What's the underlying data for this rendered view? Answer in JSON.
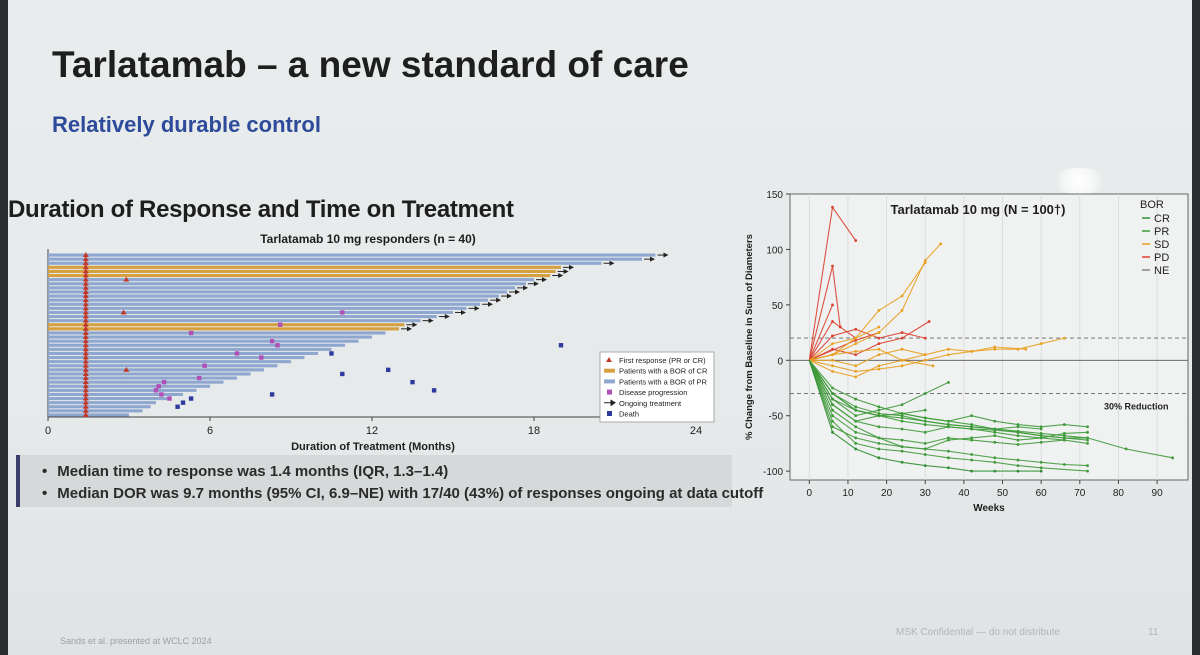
{
  "slide": {
    "title": "Tarlatamab – a new standard of care",
    "subtitle": "Relatively durable control",
    "left_heading": "Duration of Response and Time on Treatment",
    "bullets": [
      "Median time to response was 1.4 months (IQR, 1.3–1.4)",
      "Median DOR was 9.7 months (95% CI, 6.9–NE) with 17/40 (43%) of responses ongoing at data cutoff"
    ],
    "footer_left": "Sands et al. presented at WCLC 2024",
    "footer_right": "MSK Confidential — do not distribute",
    "page_number": "11",
    "colors": {
      "title": "#1e1e1e",
      "subtitle": "#2e4b9b",
      "pr_bar": "#8fa7cf",
      "cr_bar": "#d4a040",
      "first_response": "#c0392b",
      "progression": "#b04fb8",
      "death": "#2e3a9e"
    }
  },
  "chart_data": [
    {
      "type": "bar",
      "orientation": "horizontal",
      "title": "Tarlatamab 10 mg responders (n = 40)",
      "xlabel": "Duration of Treatment (Months)",
      "xlim": [
        0,
        24
      ],
      "xticks": [
        "0",
        "6",
        "12",
        "18",
        "24"
      ],
      "legend": [
        "First response (PR or CR)",
        "Patients with a BOR of CR",
        "Patients with a BOR of PR",
        "Disease progression",
        "Ongoing treatment",
        "Death"
      ],
      "legend_position": "right",
      "bars": [
        {
          "duration": 22.5,
          "bor": "PR",
          "ongoing": true
        },
        {
          "duration": 22.0,
          "bor": "PR",
          "ongoing": true
        },
        {
          "duration": 20.5,
          "bor": "PR",
          "ongoing": true
        },
        {
          "duration": 19.0,
          "bor": "CR",
          "ongoing": true
        },
        {
          "duration": 18.8,
          "bor": "CR",
          "ongoing": true
        },
        {
          "duration": 18.6,
          "bor": "CR",
          "ongoing": true
        },
        {
          "duration": 18.0,
          "bor": "PR",
          "ongoing": true
        },
        {
          "duration": 17.7,
          "bor": "PR",
          "ongoing": true
        },
        {
          "duration": 17.3,
          "bor": "PR",
          "ongoing": true
        },
        {
          "duration": 17.0,
          "bor": "PR",
          "ongoing": true
        },
        {
          "duration": 16.7,
          "bor": "PR",
          "ongoing": true
        },
        {
          "duration": 16.3,
          "bor": "PR",
          "ongoing": true
        },
        {
          "duration": 16.0,
          "bor": "PR",
          "ongoing": true
        },
        {
          "duration": 15.5,
          "bor": "PR",
          "ongoing": true
        },
        {
          "duration": 15.0,
          "bor": "PR",
          "ongoing": true
        },
        {
          "duration": 14.4,
          "bor": "PR",
          "ongoing": true
        },
        {
          "duration": 13.8,
          "bor": "PR",
          "ongoing": true
        },
        {
          "duration": 13.2,
          "bor": "CR",
          "ongoing": true
        },
        {
          "duration": 13.0,
          "bor": "CR",
          "ongoing": true
        },
        {
          "duration": 12.5,
          "bor": "PR",
          "ongoing": false
        },
        {
          "duration": 12.0,
          "bor": "PR",
          "ongoing": false
        },
        {
          "duration": 11.5,
          "bor": "PR",
          "ongoing": false
        },
        {
          "duration": 11.0,
          "bor": "PR",
          "ongoing": false
        },
        {
          "duration": 10.5,
          "bor": "PR",
          "ongoing": false
        },
        {
          "duration": 10.0,
          "bor": "PR",
          "ongoing": false
        },
        {
          "duration": 9.5,
          "bor": "PR",
          "ongoing": false
        },
        {
          "duration": 9.0,
          "bor": "PR",
          "ongoing": false
        },
        {
          "duration": 8.5,
          "bor": "PR",
          "ongoing": false
        },
        {
          "duration": 8.0,
          "bor": "PR",
          "ongoing": false
        },
        {
          "duration": 7.5,
          "bor": "PR",
          "ongoing": false
        },
        {
          "duration": 7.0,
          "bor": "PR",
          "ongoing": false
        },
        {
          "duration": 6.5,
          "bor": "PR",
          "ongoing": false
        },
        {
          "duration": 6.0,
          "bor": "PR",
          "ongoing": false
        },
        {
          "duration": 5.5,
          "bor": "PR",
          "ongoing": false
        },
        {
          "duration": 5.0,
          "bor": "PR",
          "ongoing": false
        },
        {
          "duration": 4.5,
          "bor": "PR",
          "ongoing": false
        },
        {
          "duration": 4.0,
          "bor": "PR",
          "ongoing": false
        },
        {
          "duration": 3.8,
          "bor": "PR",
          "ongoing": false
        },
        {
          "duration": 3.5,
          "bor": "PR",
          "ongoing": false
        },
        {
          "duration": 3.0,
          "bor": "PR",
          "ongoing": false
        }
      ],
      "first_response_months": 1.4,
      "first_response_late": [
        {
          "row": 6,
          "x": 2.9
        },
        {
          "row": 14,
          "x": 2.8
        },
        {
          "row": 28,
          "x": 2.9
        }
      ],
      "progression_points": [
        {
          "row": 14,
          "x": 10.9
        },
        {
          "row": 17,
          "x": 8.6
        },
        {
          "row": 19,
          "x": 5.3
        },
        {
          "row": 21,
          "x": 8.3
        },
        {
          "row": 22,
          "x": 8.5
        },
        {
          "row": 24,
          "x": 7.0
        },
        {
          "row": 25,
          "x": 7.9
        },
        {
          "row": 27,
          "x": 5.8
        },
        {
          "row": 30,
          "x": 5.6
        },
        {
          "row": 31,
          "x": 4.3
        },
        {
          "row": 32,
          "x": 4.1
        },
        {
          "row": 33,
          "x": 4.0
        },
        {
          "row": 34,
          "x": 4.2
        },
        {
          "row": 35,
          "x": 4.5
        }
      ],
      "death_points": [
        {
          "row": 22,
          "x": 19.0
        },
        {
          "row": 24,
          "x": 10.5
        },
        {
          "row": 28,
          "x": 12.6
        },
        {
          "row": 29,
          "x": 10.9
        },
        {
          "row": 31,
          "x": 13.5
        },
        {
          "row": 33,
          "x": 14.3
        },
        {
          "row": 34,
          "x": 8.3
        },
        {
          "row": 35,
          "x": 5.3
        },
        {
          "row": 36,
          "x": 5.0
        },
        {
          "row": 37,
          "x": 4.8
        }
      ]
    },
    {
      "type": "line",
      "title": "Tarlatamab 10 mg (N = 100†)",
      "xlabel": "Weeks",
      "ylabel": "% Change from Baseline in Sum of Diameters",
      "xlim": [
        -5,
        98
      ],
      "ylim": [
        -108,
        150
      ],
      "xticks": [
        0,
        10,
        20,
        30,
        40,
        50,
        60,
        70,
        80,
        90
      ],
      "yticks": [
        150,
        100,
        50,
        0,
        -50,
        -100
      ],
      "reference_lines": [
        20,
        -30
      ],
      "annotation": "30% Reduction",
      "legend_title": "BOR",
      "legend": [
        "CR",
        "PR",
        "SD",
        "PD",
        "NE"
      ],
      "legend_position": "top-right",
      "series": [
        {
          "bor": "PD",
          "x": [
            0,
            6,
            12
          ],
          "y": [
            0,
            138,
            108
          ]
        },
        {
          "bor": "PD",
          "x": [
            0,
            6,
            8
          ],
          "y": [
            0,
            85,
            30
          ]
        },
        {
          "bor": "PD",
          "x": [
            0,
            6
          ],
          "y": [
            0,
            50
          ]
        },
        {
          "bor": "PD",
          "x": [
            0,
            6,
            12
          ],
          "y": [
            0,
            35,
            20
          ]
        },
        {
          "bor": "PD",
          "x": [
            0,
            6,
            12,
            18,
            24,
            30
          ],
          "y": [
            0,
            22,
            28,
            20,
            25,
            20
          ]
        },
        {
          "bor": "PD",
          "x": [
            0,
            6,
            12,
            18,
            24,
            31
          ],
          "y": [
            0,
            10,
            5,
            15,
            20,
            35
          ]
        },
        {
          "bor": "PD",
          "x": [
            0,
            12,
            18
          ],
          "y": [
            0,
            18,
            25
          ]
        },
        {
          "bor": "SD",
          "x": [
            0,
            6,
            12,
            18,
            24,
            30,
            36,
            42,
            48,
            56
          ],
          "y": [
            0,
            5,
            8,
            10,
            0,
            5,
            10,
            8,
            12,
            10
          ]
        },
        {
          "bor": "SD",
          "x": [
            0,
            6,
            12,
            18,
            24,
            30,
            36,
            42,
            48,
            54,
            60,
            66
          ],
          "y": [
            0,
            -5,
            -10,
            -8,
            -5,
            0,
            5,
            8,
            10,
            10,
            15,
            20
          ]
        },
        {
          "bor": "SD",
          "x": [
            0,
            6,
            12,
            18,
            24,
            32
          ],
          "y": [
            0,
            -10,
            -15,
            -5,
            0,
            -5
          ]
        },
        {
          "bor": "SD",
          "x": [
            0,
            6,
            12,
            18,
            24,
            30
          ],
          "y": [
            0,
            0,
            -5,
            5,
            10,
            5
          ]
        },
        {
          "bor": "SD",
          "x": [
            0,
            6,
            12,
            18,
            24,
            30
          ],
          "y": [
            0,
            5,
            20,
            45,
            58,
            88
          ]
        },
        {
          "bor": "SD",
          "x": [
            0,
            6,
            12,
            18,
            24,
            30,
            34
          ],
          "y": [
            0,
            5,
            15,
            25,
            45,
            90,
            105
          ]
        },
        {
          "bor": "SD",
          "x": [
            0,
            6,
            12,
            18
          ],
          "y": [
            0,
            15,
            20,
            30
          ]
        },
        {
          "bor": "PR",
          "x": [
            0,
            6,
            12,
            18,
            24,
            30,
            36,
            42,
            48,
            54,
            60,
            66,
            72
          ],
          "y": [
            0,
            -30,
            -45,
            -50,
            -55,
            -58,
            -60,
            -62,
            -63,
            -65,
            -68,
            -70,
            -70
          ]
        },
        {
          "bor": "PR",
          "x": [
            0,
            6,
            12,
            18,
            24,
            30,
            36,
            42,
            48,
            54,
            60,
            66,
            72
          ],
          "y": [
            0,
            -40,
            -55,
            -60,
            -62,
            -65,
            -60,
            -62,
            -65,
            -68,
            -70,
            -66,
            -65
          ]
        },
        {
          "bor": "PR",
          "x": [
            0,
            6,
            12,
            18,
            24,
            30,
            36,
            42,
            48,
            54,
            60,
            66,
            72
          ],
          "y": [
            0,
            -35,
            -45,
            -50,
            -48,
            -52,
            -55,
            -50,
            -55,
            -58,
            -60,
            -58,
            -60
          ]
        },
        {
          "bor": "PR",
          "x": [
            0,
            6,
            12,
            18,
            24,
            30,
            36,
            42,
            48,
            54,
            60,
            66,
            72
          ],
          "y": [
            0,
            -50,
            -65,
            -70,
            -72,
            -75,
            -70,
            -72,
            -74,
            -76,
            -74,
            -72,
            -75
          ]
        },
        {
          "bor": "PR",
          "x": [
            0,
            6,
            12,
            18,
            24,
            30,
            36,
            42,
            48,
            54,
            60,
            66,
            72
          ],
          "y": [
            0,
            -45,
            -60,
            -70,
            -78,
            -80,
            -82,
            -85,
            -88,
            -90,
            -92,
            -94,
            -95
          ]
        },
        {
          "bor": "PR",
          "x": [
            0,
            6,
            12,
            18,
            24,
            30,
            36,
            42,
            48,
            54,
            60,
            66,
            72
          ],
          "y": [
            0,
            -30,
            -42,
            -48,
            -50,
            -55,
            -58,
            -60,
            -62,
            -65,
            -68,
            -70,
            -72
          ]
        },
        {
          "bor": "PR",
          "x": [
            0,
            6,
            12,
            18,
            24,
            30,
            36,
            42,
            48,
            54,
            60,
            72
          ],
          "y": [
            0,
            -55,
            -75,
            -80,
            -82,
            -85,
            -88,
            -90,
            -92,
            -95,
            -97,
            -100
          ]
        },
        {
          "bor": "PR",
          "x": [
            0,
            6,
            12,
            18,
            24,
            30,
            36
          ],
          "y": [
            0,
            -35,
            -50,
            -45,
            -40,
            -30,
            -20
          ]
        },
        {
          "bor": "PR",
          "x": [
            0,
            6,
            12,
            18,
            24,
            30
          ],
          "y": [
            0,
            -40,
            -55,
            -50,
            -48,
            -45
          ]
        },
        {
          "bor": "PR",
          "x": [
            0,
            6,
            12,
            18,
            24,
            30,
            36,
            42,
            48,
            54,
            60,
            66,
            72,
            82,
            94
          ],
          "y": [
            0,
            -30,
            -45,
            -50,
            -52,
            -55,
            -58,
            -60,
            -62,
            -64,
            -66,
            -68,
            -70,
            -80,
            -88
          ]
        },
        {
          "bor": "PR",
          "x": [
            0,
            6,
            12,
            18,
            24,
            30,
            36,
            42,
            48,
            54,
            60,
            66
          ],
          "y": [
            0,
            -60,
            -70,
            -75,
            -78,
            -80,
            -72,
            -70,
            -68,
            -72,
            -70,
            -72
          ]
        },
        {
          "bor": "PR",
          "x": [
            0,
            6,
            12,
            18,
            24,
            30,
            36,
            42,
            48,
            54,
            60
          ],
          "y": [
            0,
            -25,
            -35,
            -42,
            -48,
            -52,
            -55,
            -58,
            -62,
            -60,
            -62
          ]
        },
        {
          "bor": "CR",
          "x": [
            0,
            6,
            12,
            18,
            24,
            30,
            36,
            42,
            48,
            54,
            60
          ],
          "y": [
            0,
            -65,
            -80,
            -88,
            -92,
            -95,
            -97,
            -100,
            -100,
            -100,
            -100
          ]
        }
      ]
    }
  ]
}
